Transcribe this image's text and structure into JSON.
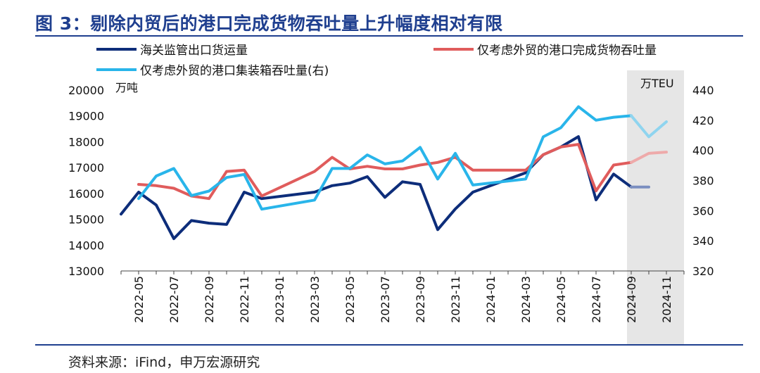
{
  "title": "图 3：剔除内贸后的港口完成货物吞吐量上升幅度相对有限",
  "source": "资料来源：iFind，申万宏源研究",
  "colors": {
    "customs": "#0d2d7a",
    "port": "#e05c5c",
    "container": "#29b5ea",
    "shade": "#e6e6e6"
  },
  "chart_data": {
    "type": "line",
    "left_unit": "万吨",
    "right_unit": "万TEU",
    "ylim_left": [
      13000,
      20000
    ],
    "ylim_right": [
      320,
      440
    ],
    "yticks_left": [
      "13000",
      "14000",
      "15000",
      "16000",
      "17000",
      "18000",
      "19000",
      "20000"
    ],
    "yticks_right": [
      "320",
      "340",
      "360",
      "380",
      "400",
      "420",
      "440"
    ],
    "x_tick_labels": [
      "2022-05",
      "2022-07",
      "2022-09",
      "2022-11",
      "2023-01",
      "2023-03",
      "2023-05",
      "2023-07",
      "2023-09",
      "2023-11",
      "2024-01",
      "2024-03",
      "2024-05",
      "2024-07",
      "2024-09",
      "2024-11"
    ],
    "x_start": "2022-04",
    "x_end": "2024-12",
    "shaded_region": [
      "2024-09",
      "2024-12"
    ],
    "series": [
      {
        "name": "海关监管出口货运量",
        "axis": "left",
        "color_key": "customs",
        "points": [
          [
            "2022-04",
            15200
          ],
          [
            "2022-05",
            16050
          ],
          [
            "2022-06",
            15550
          ],
          [
            "2022-07",
            14250
          ],
          [
            "2022-08",
            14950
          ],
          [
            "2022-09",
            14850
          ],
          [
            "2022-10",
            14800
          ],
          [
            "2022-11",
            16050
          ],
          [
            "2022-12",
            15800
          ],
          [
            "2023-03",
            16050
          ],
          [
            "2023-04",
            16300
          ],
          [
            "2023-05",
            16400
          ],
          [
            "2023-06",
            16650
          ],
          [
            "2023-07",
            15850
          ],
          [
            "2023-08",
            16450
          ],
          [
            "2023-09",
            16350
          ],
          [
            "2023-10",
            14600
          ],
          [
            "2023-11",
            15400
          ],
          [
            "2023-12",
            16050
          ],
          [
            "2024-03",
            16800
          ],
          [
            "2024-04",
            17500
          ],
          [
            "2024-05",
            17800
          ],
          [
            "2024-06",
            18200
          ],
          [
            "2024-07",
            15750
          ],
          [
            "2024-08",
            16750
          ],
          [
            "2024-09",
            16250
          ],
          [
            "2024-10",
            16250
          ]
        ],
        "faded_from": "2024-09"
      },
      {
        "name": "仅考虑外贸的港口完成货物吞吐量",
        "axis": "left",
        "color_key": "port",
        "points": [
          [
            "2022-05",
            16350
          ],
          [
            "2022-06",
            16300
          ],
          [
            "2022-07",
            16200
          ],
          [
            "2022-08",
            15900
          ],
          [
            "2022-09",
            15800
          ],
          [
            "2022-10",
            16850
          ],
          [
            "2022-11",
            16900
          ],
          [
            "2022-12",
            15900
          ],
          [
            "2023-03",
            16850
          ],
          [
            "2023-04",
            17400
          ],
          [
            "2023-05",
            16950
          ],
          [
            "2023-06",
            17050
          ],
          [
            "2023-07",
            16950
          ],
          [
            "2023-08",
            16950
          ],
          [
            "2023-09",
            17100
          ],
          [
            "2023-10",
            17200
          ],
          [
            "2023-11",
            17400
          ],
          [
            "2023-12",
            16900
          ],
          [
            "2024-03",
            16900
          ],
          [
            "2024-04",
            17500
          ],
          [
            "2024-05",
            17800
          ],
          [
            "2024-06",
            17900
          ],
          [
            "2024-07",
            16100
          ],
          [
            "2024-08",
            17100
          ],
          [
            "2024-09",
            17200
          ],
          [
            "2024-10",
            17550
          ],
          [
            "2024-11",
            17600
          ]
        ],
        "faded_from": "2024-09"
      },
      {
        "name": "仅考虑外贸的港口集装箱吞吐量(右)",
        "axis": "right",
        "color_key": "container",
        "points": [
          [
            "2022-05",
            368
          ],
          [
            "2022-06",
            383
          ],
          [
            "2022-07",
            388
          ],
          [
            "2022-08",
            370
          ],
          [
            "2022-09",
            373
          ],
          [
            "2022-10",
            382
          ],
          [
            "2022-11",
            384
          ],
          [
            "2022-12",
            361
          ],
          [
            "2023-03",
            367
          ],
          [
            "2023-04",
            388
          ],
          [
            "2023-05",
            388
          ],
          [
            "2023-06",
            397
          ],
          [
            "2023-07",
            391
          ],
          [
            "2023-08",
            393
          ],
          [
            "2023-09",
            402
          ],
          [
            "2023-10",
            381
          ],
          [
            "2023-11",
            398
          ],
          [
            "2023-12",
            377
          ],
          [
            "2024-03",
            381
          ],
          [
            "2024-04",
            409
          ],
          [
            "2024-05",
            415
          ],
          [
            "2024-06",
            429
          ],
          [
            "2024-07",
            420
          ],
          [
            "2024-08",
            422
          ],
          [
            "2024-09",
            423
          ],
          [
            "2024-10",
            409
          ],
          [
            "2024-11",
            419
          ]
        ],
        "faded_from": "2024-09"
      }
    ]
  }
}
